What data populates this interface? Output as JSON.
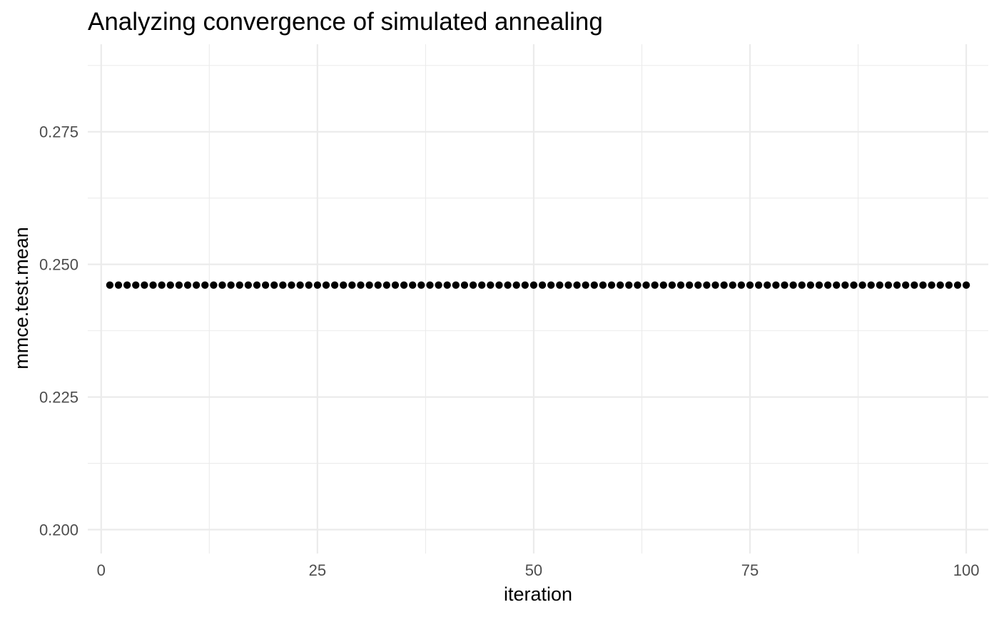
{
  "chart_data": {
    "type": "scatter",
    "title": "Analyzing convergence of simulated annealing",
    "xlabel": "iteration",
    "ylabel": "mmce.test.mean",
    "xlim": [
      -1.55,
      102.55
    ],
    "ylim": [
      0.1955,
      0.2915
    ],
    "x_ticks": [
      0,
      25,
      50,
      75,
      100
    ],
    "x_tick_labels": [
      "0",
      "25",
      "50",
      "75",
      "100"
    ],
    "x_minor_ticks": [
      12.5,
      37.5,
      62.5,
      87.5
    ],
    "y_ticks": [
      0.2,
      0.225,
      0.25,
      0.275
    ],
    "y_tick_labels": [
      "0.200",
      "0.225",
      "0.250",
      "0.275"
    ],
    "y_minor_ticks": [
      0.2125,
      0.2375,
      0.2625,
      0.2875
    ],
    "grid": true,
    "legend": "none",
    "point_color": "#000000",
    "background_color": "#ffffff",
    "grid_color": "#ebebeb",
    "series": [
      {
        "x_start": 1,
        "x_end": 100,
        "x_step": 1,
        "y_constant": 0.2461
      }
    ]
  }
}
